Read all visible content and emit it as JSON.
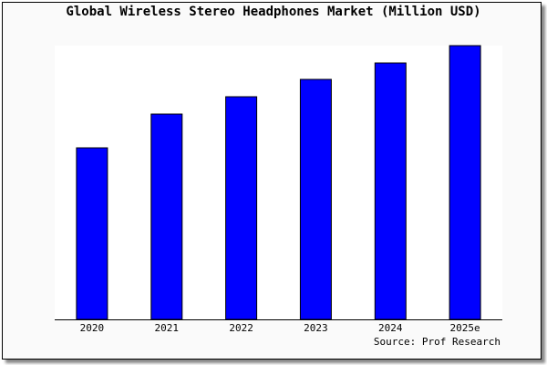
{
  "chart_data": {
    "type": "bar",
    "title": "Global Wireless Stereo Headphones Market (Million USD)",
    "categories": [
      "2020",
      "2021",
      "2022",
      "2023",
      "2024",
      "2025e"
    ],
    "values": [
      188,
      225,
      244,
      263,
      281,
      300
    ],
    "ylim": [
      0,
      300
    ],
    "xlabel": "",
    "ylabel": "",
    "grid": false,
    "bar_color": "#0000ff",
    "source": "Source: Prof Research"
  }
}
